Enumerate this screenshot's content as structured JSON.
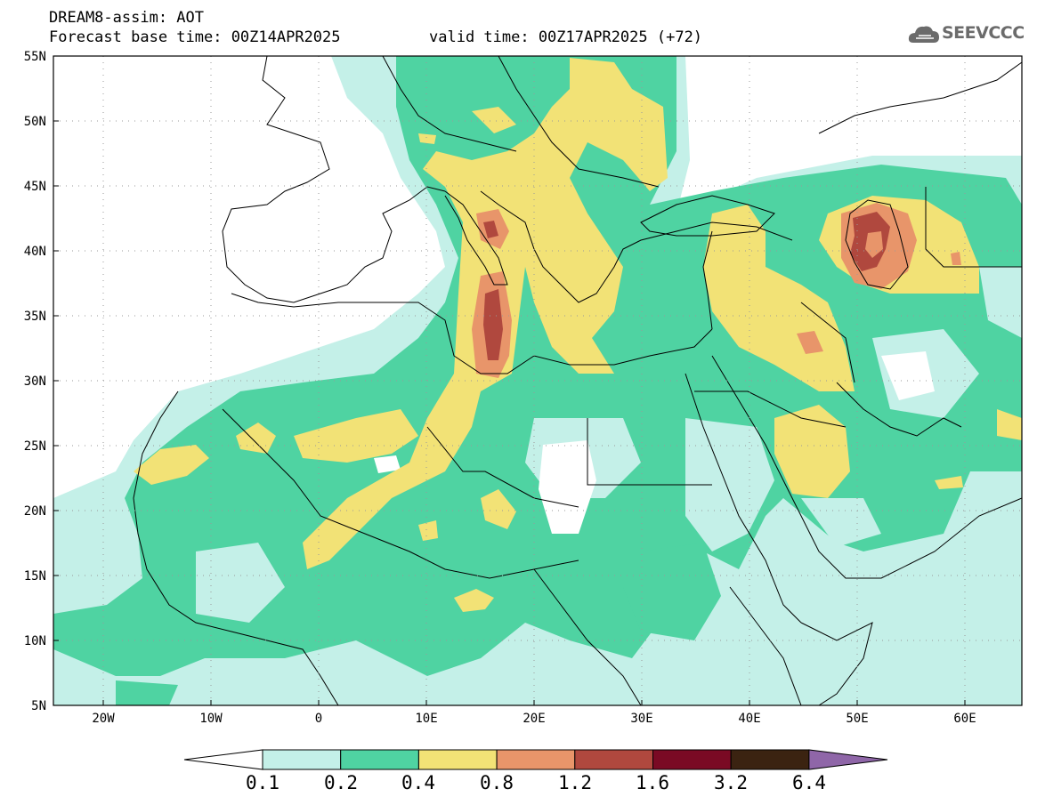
{
  "header": {
    "title_line1": "DREAM8-assim: AOT",
    "title_line2_base": "Forecast base time: 00Z14APR2025",
    "title_line2_valid": "valid time: 00Z17APR2025 (+72)"
  },
  "logo": {
    "text": "SEEVCCC",
    "icon": "cloud-logo-icon"
  },
  "axes": {
    "lat_labels": [
      "55N",
      "50N",
      "45N",
      "40N",
      "35N",
      "30N",
      "25N",
      "20N",
      "15N",
      "10N",
      "5N"
    ],
    "lon_labels": [
      "20W",
      "10W",
      "0",
      "10E",
      "20E",
      "30E",
      "40E",
      "50E",
      "60E"
    ]
  },
  "colorbar": {
    "labels": [
      "0.1",
      "0.2",
      "0.4",
      "0.8",
      "1.2",
      "1.6",
      "3.2",
      "6.4"
    ],
    "colors": [
      "#c4f0e8",
      "#4fd3a2",
      "#f2e276",
      "#e8956a",
      "#b0483e",
      "#7a0a24",
      "#3b2311",
      "#8f66a8"
    ],
    "under_color": "#ffffff"
  }
}
